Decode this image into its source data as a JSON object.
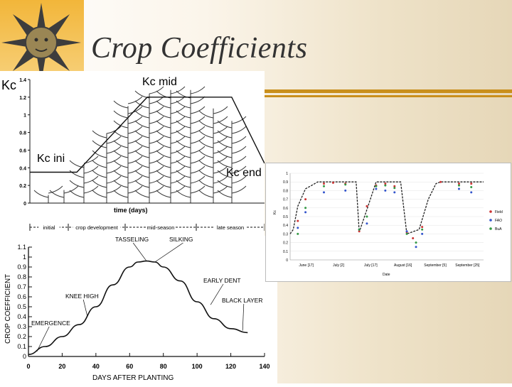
{
  "slide": {
    "title": "Crop Coefficients"
  },
  "chart_data": [
    {
      "type": "line",
      "id": "fao-kc-curve",
      "ylabel": "Kc",
      "xlabel": "time (days)",
      "ylim": [
        0,
        1.4
      ],
      "yticks": [
        "0",
        "0.2",
        "0.4",
        "0.6",
        "0.8",
        "1",
        "1.2",
        "1.4"
      ],
      "stages": [
        "initial",
        "crop development",
        "mid-season",
        "late season"
      ],
      "annotations": {
        "kc_mid": "Kc mid",
        "kc_ini": "Kc ini",
        "kc_end": "Kc end"
      },
      "series": [
        {
          "x": [
            0,
            0.2,
            0.5,
            0.86,
            1.0
          ],
          "y": [
            0.35,
            0.35,
            1.2,
            1.2,
            0.45
          ]
        }
      ]
    },
    {
      "type": "line",
      "id": "corn-kc-curve",
      "ylabel": "CROP COEFFICIENT",
      "xlabel": "DAYS AFTER PLANTING",
      "xlim": [
        0,
        140
      ],
      "ylim": [
        0,
        1.1
      ],
      "xticks": [
        "0",
        "20",
        "40",
        "60",
        "80",
        "100",
        "120",
        "140"
      ],
      "yticks": [
        "0",
        "0.1",
        "0.2",
        "0.3",
        "0.4",
        "0.5",
        "0.6",
        "0.7",
        "0.8",
        "0.9",
        "1",
        "1.1"
      ],
      "annotations": [
        "TASSELING",
        "SILKING",
        "EARLY DENT",
        "KNEE HIGH",
        "BLACK LAYER",
        "EMERGENCE"
      ],
      "series": [
        {
          "x": [
            0,
            10,
            20,
            30,
            40,
            50,
            60,
            65,
            70,
            75,
            80,
            90,
            100,
            110,
            120,
            130
          ],
          "y": [
            0.02,
            0.1,
            0.2,
            0.32,
            0.5,
            0.72,
            0.9,
            0.95,
            0.96,
            0.95,
            0.9,
            0.76,
            0.55,
            0.38,
            0.28,
            0.24
          ]
        }
      ]
    },
    {
      "type": "scatter",
      "id": "field-kc-series",
      "xlabel": "Date",
      "ylabel": "Kc",
      "ylim": [
        0,
        1
      ],
      "yticks": [
        "0",
        "0.1",
        "0.2",
        "0.3",
        "0.4",
        "0.5",
        "0.6",
        "0.7",
        "0.8",
        "0.9",
        "1"
      ],
      "xticks": [
        "June [17]",
        "July [2]",
        "July [17]",
        "August [16]",
        "September [5]",
        "September [25]"
      ],
      "legend": [
        "Field",
        "FAO",
        "BuA"
      ],
      "legend_position": "right",
      "colors": {
        "Field": "#cc3333",
        "FAO": "#3355cc",
        "BuA": "#339944",
        "fit": "#222222"
      },
      "fit": {
        "x": [
          0,
          2,
          5,
          10,
          18,
          22,
          28,
          36,
          43,
          45,
          50,
          56,
          64,
          68,
          72,
          76,
          84,
          90,
          95,
          98,
          104,
          110,
          118,
          126
        ],
        "y": [
          0.3,
          0.35,
          0.62,
          0.82,
          0.9,
          0.9,
          0.9,
          0.9,
          0.9,
          0.32,
          0.58,
          0.9,
          0.9,
          0.9,
          0.9,
          0.3,
          0.35,
          0.7,
          0.88,
          0.9,
          0.9,
          0.9,
          0.9,
          0.9
        ]
      },
      "series": [
        {
          "name": "Field",
          "x": [
            5,
            10,
            22,
            28,
            36,
            45,
            50,
            56,
            62,
            68,
            76,
            80,
            86,
            98,
            110,
            118
          ],
          "y": [
            0.45,
            0.7,
            0.88,
            0.89,
            0.88,
            0.33,
            0.62,
            0.86,
            0.88,
            0.85,
            0.32,
            0.25,
            0.38,
            0.9,
            0.88,
            0.88
          ]
        },
        {
          "name": "FAO",
          "x": [
            5,
            10,
            22,
            36,
            45,
            50,
            56,
            62,
            68,
            76,
            82,
            86,
            110,
            118
          ],
          "y": [
            0.37,
            0.55,
            0.78,
            0.8,
            0.35,
            0.42,
            0.82,
            0.8,
            0.78,
            0.33,
            0.15,
            0.3,
            0.82,
            0.78
          ]
        },
        {
          "name": "BuA",
          "x": [
            5,
            10,
            22,
            36,
            45,
            50,
            56,
            62,
            68,
            76,
            82,
            86,
            110,
            118
          ],
          "y": [
            0.3,
            0.6,
            0.85,
            0.87,
            0.35,
            0.5,
            0.85,
            0.86,
            0.83,
            0.3,
            0.2,
            0.35,
            0.86,
            0.84
          ]
        }
      ]
    }
  ]
}
